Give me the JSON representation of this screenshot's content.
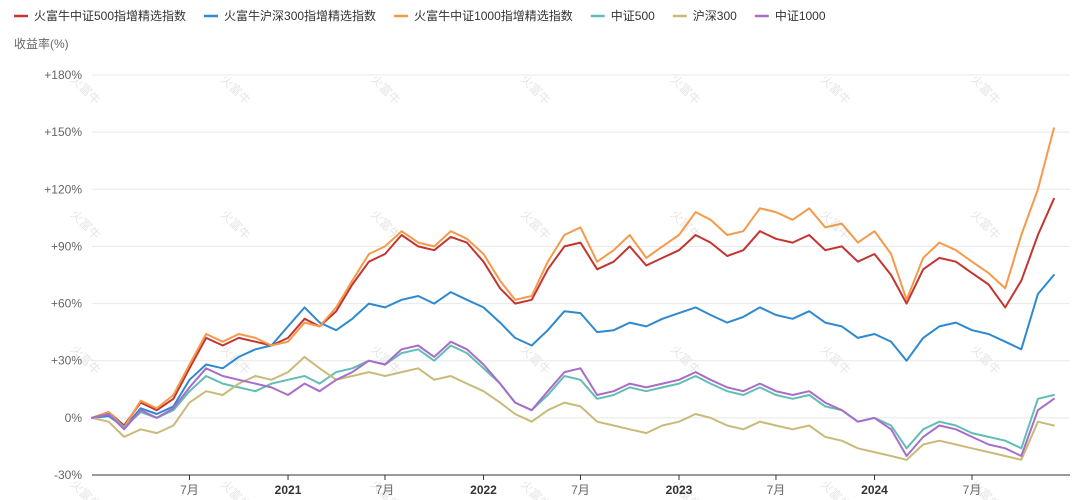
{
  "chart_data": {
    "type": "line",
    "ylabel": "收益率(%)",
    "ylim": [
      -30,
      180
    ],
    "yticks": [
      {
        "value": 180,
        "label": "+180%"
      },
      {
        "value": 150,
        "label": "+150%"
      },
      {
        "value": 120,
        "label": "+120%"
      },
      {
        "value": 90,
        "label": "+90%"
      },
      {
        "value": 60,
        "label": "+60%"
      },
      {
        "value": 30,
        "label": "+30%"
      },
      {
        "value": 0,
        "label": "0%"
      },
      {
        "value": -30,
        "label": "-30%"
      }
    ],
    "xrange": [
      "2020-01-01",
      "2024-12-31"
    ],
    "xticks": [
      {
        "x": "2020-07-01",
        "label": "7月",
        "major": false
      },
      {
        "x": "2021-01-01",
        "label": "2021",
        "major": true
      },
      {
        "x": "2021-07-01",
        "label": "7月",
        "major": false
      },
      {
        "x": "2022-01-01",
        "label": "2022",
        "major": true
      },
      {
        "x": "2022-07-01",
        "label": "7月",
        "major": false
      },
      {
        "x": "2023-01-01",
        "label": "2023",
        "major": true
      },
      {
        "x": "2023-07-01",
        "label": "7月",
        "major": false
      },
      {
        "x": "2024-01-01",
        "label": "2024",
        "major": true
      },
      {
        "x": "2024-07-01",
        "label": "7月",
        "major": false
      }
    ],
    "grid": true,
    "legend_position": "top-left",
    "watermark_text": "火富牛",
    "x": [
      "2020-01-01",
      "2020-02-01",
      "2020-03-01",
      "2020-04-01",
      "2020-05-01",
      "2020-06-01",
      "2020-07-01",
      "2020-08-01",
      "2020-09-01",
      "2020-10-01",
      "2020-11-01",
      "2020-12-01",
      "2021-01-01",
      "2021-02-01",
      "2021-03-01",
      "2021-04-01",
      "2021-05-01",
      "2021-06-01",
      "2021-07-01",
      "2021-08-01",
      "2021-09-01",
      "2021-10-01",
      "2021-11-01",
      "2021-12-01",
      "2022-01-01",
      "2022-02-01",
      "2022-03-01",
      "2022-04-01",
      "2022-05-01",
      "2022-06-01",
      "2022-07-01",
      "2022-08-01",
      "2022-09-01",
      "2022-10-01",
      "2022-11-01",
      "2022-12-01",
      "2023-01-01",
      "2023-02-01",
      "2023-03-01",
      "2023-04-01",
      "2023-05-01",
      "2023-06-01",
      "2023-07-01",
      "2023-08-01",
      "2023-09-01",
      "2023-10-01",
      "2023-11-01",
      "2023-12-01",
      "2024-01-01",
      "2024-02-01",
      "2024-03-01",
      "2024-04-01",
      "2024-05-01",
      "2024-06-01",
      "2024-07-01",
      "2024-08-01",
      "2024-09-01",
      "2024-10-01",
      "2024-11-01",
      "2024-12-01"
    ],
    "series": [
      {
        "name": "火富牛中证500指增精选指数",
        "color": "#c23531",
        "values": [
          0,
          3,
          -4,
          8,
          4,
          10,
          26,
          42,
          38,
          42,
          40,
          38,
          42,
          52,
          48,
          56,
          70,
          82,
          86,
          96,
          90,
          88,
          95,
          92,
          82,
          68,
          60,
          62,
          78,
          90,
          92,
          78,
          82,
          90,
          80,
          84,
          88,
          96,
          92,
          85,
          88,
          98,
          94,
          92,
          96,
          88,
          90,
          82,
          86,
          75,
          60,
          78,
          84,
          82,
          76,
          70,
          58,
          72,
          96,
          115
        ]
      },
      {
        "name": "火富牛沪深300指增精选指数",
        "color": "#2f89cf",
        "values": [
          0,
          1,
          -5,
          5,
          2,
          6,
          20,
          28,
          26,
          32,
          36,
          38,
          48,
          58,
          50,
          46,
          52,
          60,
          58,
          62,
          64,
          60,
          66,
          62,
          58,
          50,
          42,
          38,
          46,
          56,
          55,
          45,
          46,
          50,
          48,
          52,
          55,
          58,
          54,
          50,
          53,
          58,
          54,
          52,
          56,
          50,
          48,
          42,
          44,
          40,
          30,
          42,
          48,
          50,
          46,
          44,
          40,
          36,
          65,
          75
        ]
      },
      {
        "name": "火富牛中证1000指增精选指数",
        "color": "#f59a4b",
        "values": [
          0,
          3,
          -5,
          9,
          5,
          12,
          28,
          44,
          40,
          44,
          42,
          38,
          40,
          50,
          48,
          58,
          72,
          86,
          90,
          98,
          92,
          90,
          98,
          94,
          86,
          72,
          62,
          64,
          82,
          96,
          100,
          82,
          88,
          96,
          84,
          90,
          96,
          108,
          104,
          96,
          98,
          110,
          108,
          104,
          110,
          100,
          102,
          92,
          98,
          86,
          62,
          84,
          92,
          88,
          82,
          76,
          68,
          96,
          120,
          152
        ]
      },
      {
        "name": "中证500",
        "color": "#62bdb5",
        "values": [
          0,
          2,
          -5,
          3,
          0,
          4,
          14,
          22,
          18,
          16,
          14,
          18,
          20,
          22,
          18,
          24,
          26,
          30,
          28,
          34,
          36,
          30,
          38,
          34,
          26,
          18,
          8,
          4,
          12,
          22,
          20,
          10,
          12,
          16,
          14,
          16,
          18,
          22,
          18,
          14,
          12,
          16,
          12,
          10,
          12,
          6,
          4,
          -2,
          0,
          -4,
          -16,
          -6,
          -2,
          -4,
          -8,
          -10,
          -12,
          -16,
          10,
          12
        ]
      },
      {
        "name": "沪深300",
        "color": "#c9ba7a",
        "values": [
          0,
          -2,
          -10,
          -6,
          -8,
          -4,
          8,
          14,
          12,
          18,
          22,
          20,
          24,
          32,
          26,
          20,
          22,
          24,
          22,
          24,
          26,
          20,
          22,
          18,
          14,
          8,
          2,
          -2,
          4,
          8,
          6,
          -2,
          -4,
          -6,
          -8,
          -4,
          -2,
          2,
          0,
          -4,
          -6,
          -2,
          -4,
          -6,
          -4,
          -10,
          -12,
          -16,
          -18,
          -20,
          -22,
          -14,
          -12,
          -14,
          -16,
          -18,
          -20,
          -22,
          -2,
          -4
        ]
      },
      {
        "name": "中证1000",
        "color": "#a86dc8",
        "values": [
          0,
          2,
          -6,
          4,
          0,
          5,
          16,
          26,
          22,
          20,
          18,
          16,
          12,
          18,
          14,
          20,
          24,
          30,
          28,
          36,
          38,
          32,
          40,
          36,
          28,
          18,
          8,
          4,
          14,
          24,
          26,
          12,
          14,
          18,
          16,
          18,
          20,
          24,
          20,
          16,
          14,
          18,
          14,
          12,
          14,
          8,
          4,
          -2,
          0,
          -6,
          -20,
          -10,
          -4,
          -6,
          -10,
          -14,
          -16,
          -20,
          4,
          10
        ]
      }
    ]
  }
}
